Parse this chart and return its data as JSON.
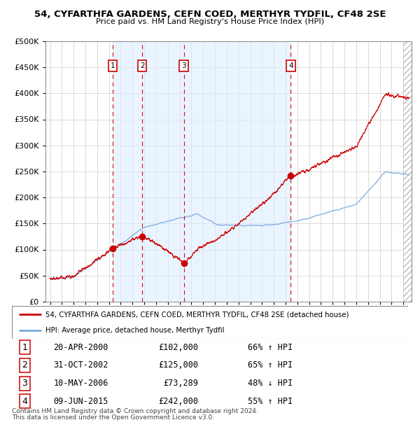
{
  "title1": "54, CYFARTHFA GARDENS, CEFN COED, MERTHYR TYDFIL, CF48 2SE",
  "title2": "Price paid vs. HM Land Registry's House Price Index (HPI)",
  "hpi_color": "#7aaadd",
  "price_color": "#cc0000",
  "bg_shade_color": "#ddeeff",
  "ylim": [
    0,
    500000
  ],
  "xlim": [
    1994.6,
    2025.7
  ],
  "yticks": [
    0,
    50000,
    100000,
    150000,
    200000,
    250000,
    300000,
    350000,
    400000,
    450000,
    500000
  ],
  "xtick_years": [
    1995,
    1996,
    1997,
    1998,
    1999,
    2000,
    2001,
    2002,
    2003,
    2004,
    2005,
    2006,
    2007,
    2008,
    2009,
    2010,
    2011,
    2012,
    2013,
    2014,
    2015,
    2016,
    2017,
    2018,
    2019,
    2020,
    2021,
    2022,
    2023,
    2024,
    2025
  ],
  "sale_markers": [
    {
      "label": "1",
      "year_f": 2000.31,
      "price": 102000
    },
    {
      "label": "2",
      "year_f": 2002.83,
      "price": 125000
    },
    {
      "label": "3",
      "year_f": 2006.36,
      "price": 73289
    },
    {
      "label": "4",
      "year_f": 2015.44,
      "price": 242000
    }
  ],
  "shade_region": [
    2000.31,
    2015.44
  ],
  "hatch_start": 2025.0,
  "legend_line1": "54, CYFARTHFA GARDENS, CEFN COED, MERTHYR TYDFIL, CF48 2SE (detached house)",
  "legend_line2": "HPI: Average price, detached house, Merthyr Tydfil",
  "table_rows": [
    [
      "1",
      "20-APR-2000",
      "£102,000",
      "66% ↑ HPI"
    ],
    [
      "2",
      "31-OCT-2002",
      "£125,000",
      "65% ↑ HPI"
    ],
    [
      "3",
      "10-MAY-2006",
      "£73,289",
      "48% ↓ HPI"
    ],
    [
      "4",
      "09-JUN-2015",
      "£242,000",
      "55% ↑ HPI"
    ]
  ],
  "footnote1": "Contains HM Land Registry data © Crown copyright and database right 2024.",
  "footnote2": "This data is licensed under the Open Government Licence v3.0."
}
